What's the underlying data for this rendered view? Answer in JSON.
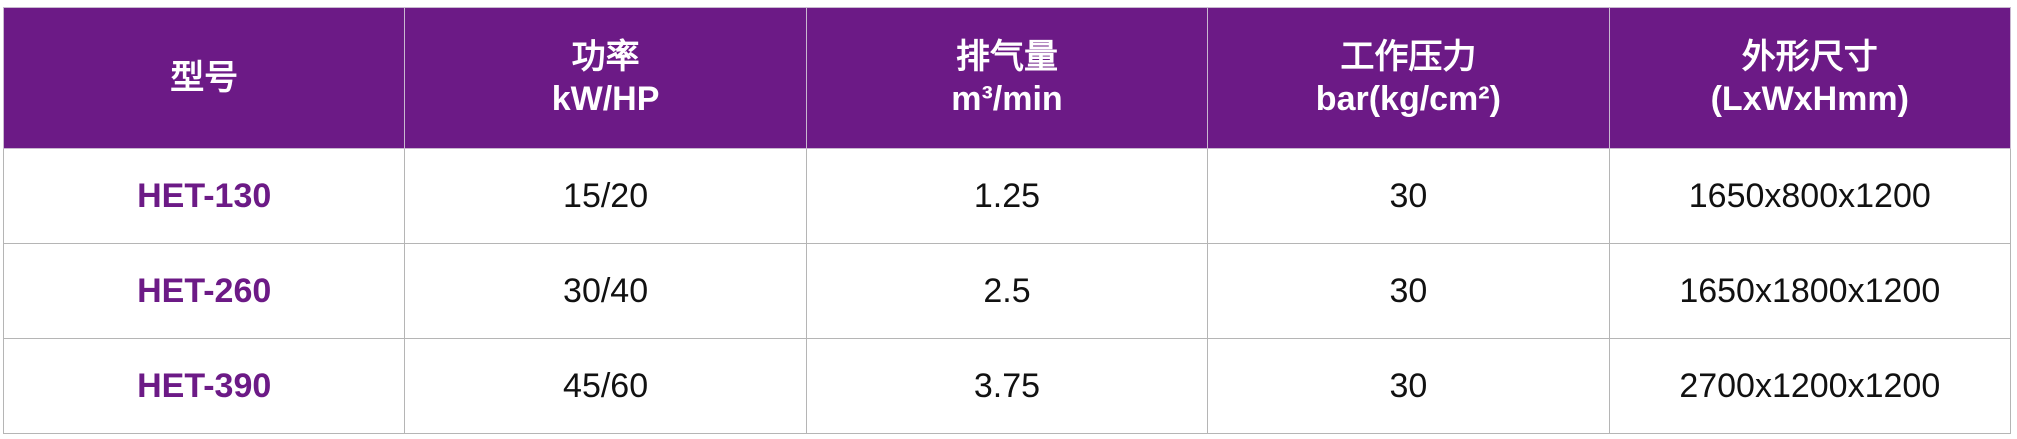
{
  "colors": {
    "header_bg": "#6c1a86",
    "model_text": "#6c1a86"
  },
  "table": {
    "headers": [
      {
        "line1": "型号",
        "line2": ""
      },
      {
        "line1": "功率",
        "line2": "kW/HP"
      },
      {
        "line1": "排气量",
        "line2": "m³/min"
      },
      {
        "line1": "工作压力",
        "line2": "bar(kg/cm²)"
      },
      {
        "line1": "外形尺寸",
        "line2": "(LxWxHmm)"
      }
    ],
    "rows": [
      [
        "HET-130",
        "15/20",
        "1.25",
        "30",
        "1650x800x1200"
      ],
      [
        "HET-260",
        "30/40",
        "2.5",
        "30",
        "1650x1800x1200"
      ],
      [
        "HET-390",
        "45/60",
        "3.75",
        "30",
        "2700x1200x1200"
      ]
    ]
  }
}
